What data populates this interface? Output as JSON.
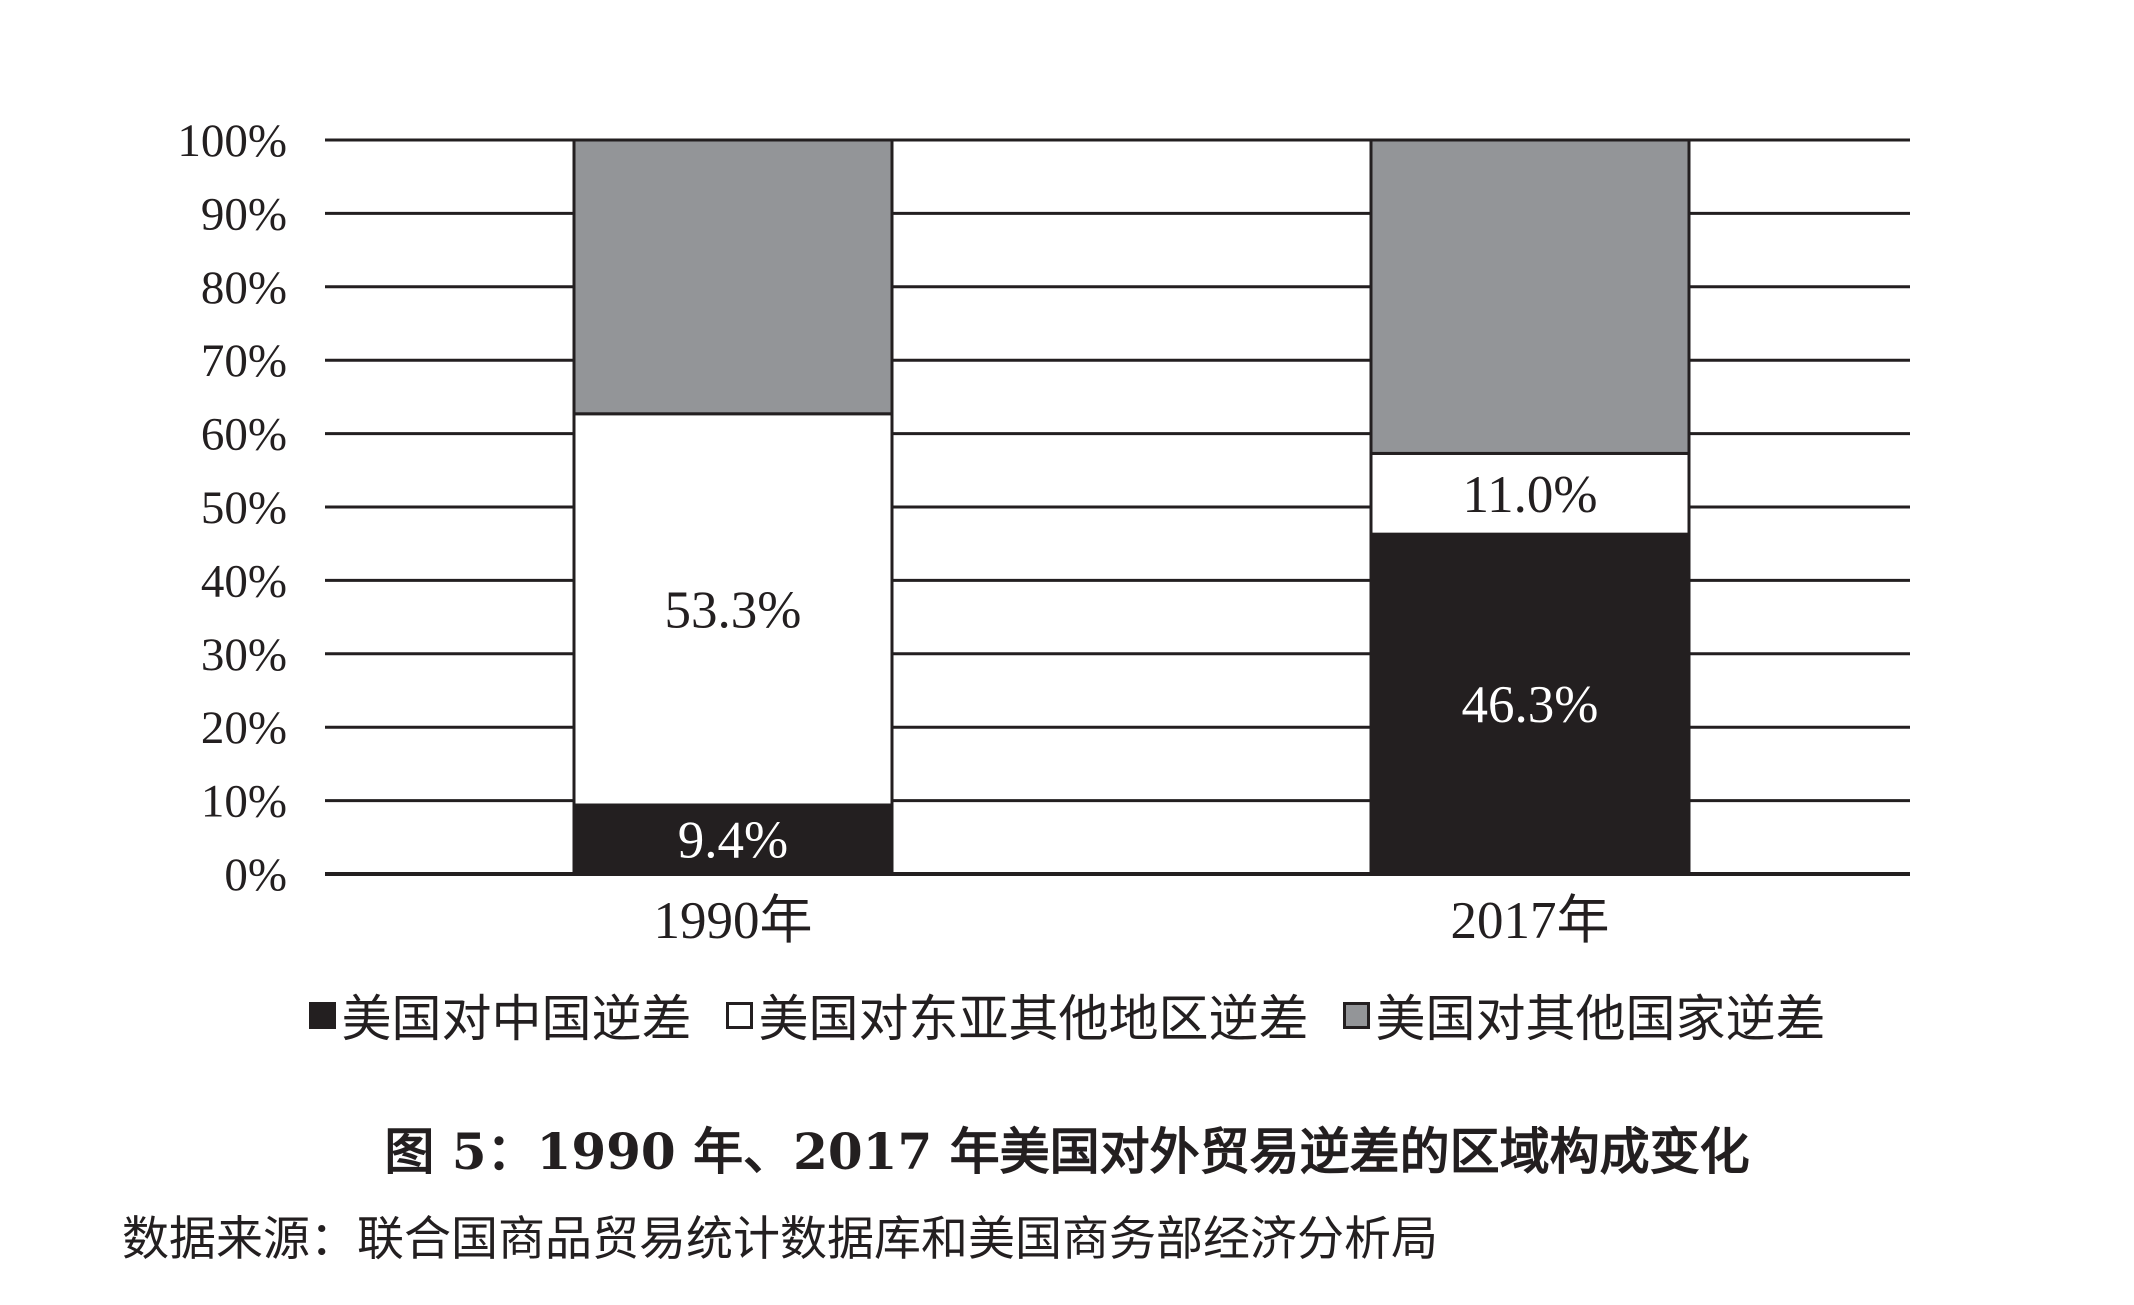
{
  "chart_data": {
    "type": "bar",
    "stacked": true,
    "categories": [
      "1990年",
      "2017年"
    ],
    "series": [
      {
        "name": "美国对中国逆差",
        "values": [
          9.4,
          46.3
        ],
        "labels": [
          "9.4%",
          "46.3%"
        ],
        "color": "#231f20",
        "label_color": "#ffffff"
      },
      {
        "name": "美国对东亚其他地区逆差",
        "values": [
          53.3,
          11.0
        ],
        "labels": [
          "53.3%",
          "11.0%"
        ],
        "color": "#ffffff",
        "label_color": "#231f20"
      },
      {
        "name": "美国对其他国家逆差",
        "values": [
          37.3,
          42.7
        ],
        "labels": [
          "",
          ""
        ],
        "color": "#939598",
        "label_color": "#231f20"
      }
    ],
    "yticks": [
      "0%",
      "10%",
      "20%",
      "30%",
      "40%",
      "50%",
      "60%",
      "70%",
      "80%",
      "90%",
      "100%"
    ],
    "ylim": [
      0,
      100
    ],
    "grid": true,
    "legend_position": "bottom",
    "title": "图 5：1990 年、2017 年美国对外贸易逆差的区域构成变化"
  },
  "caption": "图 5：1990 年、2017 年美国对外贸易逆差的区域构成变化",
  "source": "数据来源：联合国商品贸易统计数据库和美国商务部经济分析局"
}
